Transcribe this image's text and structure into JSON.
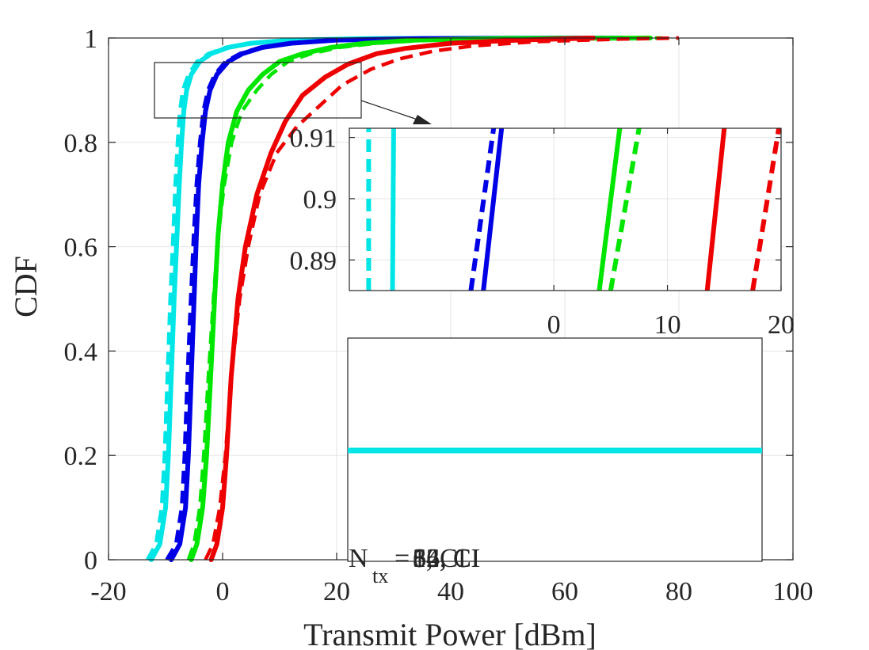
{
  "chart_data": {
    "type": "line",
    "title": "",
    "xlabel": "Transmit Power [dBm]",
    "ylabel": "CDF",
    "xlim": [
      -20,
      100
    ],
    "ylim": [
      0,
      1
    ],
    "xticks": [
      "-20",
      "0",
      "20",
      "40",
      "60",
      "80",
      "100"
    ],
    "yticks": [
      "0",
      "0.2",
      "0.4",
      "0.6",
      "0.8",
      "1"
    ],
    "grid": true,
    "colors": {
      "cyan": "#00e5e5",
      "blue": "#0000e6",
      "green": "#00e600",
      "red": "#ee0000"
    },
    "series": [
      {
        "name": "cyan-solid",
        "color": "cyan",
        "style": "solid",
        "points": [
          [
            -12.5,
            0
          ],
          [
            -11,
            0.03
          ],
          [
            -10,
            0.1
          ],
          [
            -9.5,
            0.2
          ],
          [
            -9,
            0.35
          ],
          [
            -8.5,
            0.5
          ],
          [
            -8,
            0.62
          ],
          [
            -7.6,
            0.72
          ],
          [
            -7.2,
            0.8
          ],
          [
            -6.8,
            0.86
          ],
          [
            -6.3,
            0.9
          ],
          [
            -5.5,
            0.93
          ],
          [
            -4,
            0.955
          ],
          [
            -2,
            0.97
          ],
          [
            1,
            0.982
          ],
          [
            5,
            0.99
          ],
          [
            12,
            0.996
          ],
          [
            25,
            0.999
          ],
          [
            60,
            1
          ]
        ]
      },
      {
        "name": "cyan-dashed",
        "color": "cyan",
        "style": "dashed",
        "points": [
          [
            -13.2,
            0
          ],
          [
            -11.7,
            0.03
          ],
          [
            -10.7,
            0.1
          ],
          [
            -10.2,
            0.2
          ],
          [
            -9.7,
            0.35
          ],
          [
            -9.2,
            0.5
          ],
          [
            -8.7,
            0.62
          ],
          [
            -8.3,
            0.72
          ],
          [
            -7.9,
            0.8
          ],
          [
            -7.5,
            0.86
          ],
          [
            -7,
            0.9
          ],
          [
            -6,
            0.93
          ],
          [
            -4.5,
            0.955
          ],
          [
            -2.5,
            0.97
          ],
          [
            0.5,
            0.982
          ],
          [
            4.5,
            0.99
          ],
          [
            11,
            0.996
          ],
          [
            24,
            0.999
          ],
          [
            58,
            1
          ]
        ]
      },
      {
        "name": "blue-solid",
        "color": "blue",
        "style": "solid",
        "points": [
          [
            -9,
            0
          ],
          [
            -7.5,
            0.03
          ],
          [
            -6.5,
            0.1
          ],
          [
            -6,
            0.2
          ],
          [
            -5.5,
            0.35
          ],
          [
            -5,
            0.5
          ],
          [
            -4.6,
            0.62
          ],
          [
            -4.2,
            0.72
          ],
          [
            -3.6,
            0.8
          ],
          [
            -3,
            0.86
          ],
          [
            -2.2,
            0.9
          ],
          [
            -1,
            0.93
          ],
          [
            1,
            0.955
          ],
          [
            3.5,
            0.97
          ],
          [
            7,
            0.982
          ],
          [
            12,
            0.99
          ],
          [
            20,
            0.996
          ],
          [
            35,
            0.999
          ],
          [
            70,
            1
          ]
        ]
      },
      {
        "name": "blue-dashed",
        "color": "blue",
        "style": "dashed",
        "points": [
          [
            -9.8,
            0
          ],
          [
            -8.2,
            0.03
          ],
          [
            -7.2,
            0.1
          ],
          [
            -6.7,
            0.2
          ],
          [
            -6.2,
            0.35
          ],
          [
            -5.6,
            0.5
          ],
          [
            -5.1,
            0.62
          ],
          [
            -4.6,
            0.72
          ],
          [
            -4,
            0.8
          ],
          [
            -3.4,
            0.86
          ],
          [
            -2.6,
            0.9
          ],
          [
            -1.4,
            0.93
          ],
          [
            0.5,
            0.955
          ],
          [
            3,
            0.97
          ],
          [
            6.5,
            0.982
          ],
          [
            11.5,
            0.99
          ],
          [
            19,
            0.996
          ],
          [
            34,
            0.999
          ],
          [
            68,
            1
          ]
        ]
      },
      {
        "name": "green-solid",
        "color": "green",
        "style": "solid",
        "points": [
          [
            -5.5,
            0
          ],
          [
            -4.5,
            0.03
          ],
          [
            -3.5,
            0.1
          ],
          [
            -2.8,
            0.2
          ],
          [
            -2.1,
            0.35
          ],
          [
            -1.4,
            0.5
          ],
          [
            -0.8,
            0.62
          ],
          [
            0,
            0.72
          ],
          [
            1,
            0.8
          ],
          [
            2.5,
            0.86
          ],
          [
            4.5,
            0.9
          ],
          [
            7,
            0.93
          ],
          [
            10,
            0.955
          ],
          [
            14,
            0.97
          ],
          [
            19,
            0.982
          ],
          [
            25,
            0.99
          ],
          [
            34,
            0.996
          ],
          [
            48,
            0.999
          ],
          [
            75,
            1
          ]
        ]
      },
      {
        "name": "green-dashed",
        "color": "green",
        "style": "dashed",
        "points": [
          [
            -6,
            0
          ],
          [
            -5,
            0.03
          ],
          [
            -4,
            0.1
          ],
          [
            -3.3,
            0.2
          ],
          [
            -2.5,
            0.35
          ],
          [
            -1.6,
            0.5
          ],
          [
            -0.8,
            0.62
          ],
          [
            0.3,
            0.72
          ],
          [
            1.6,
            0.8
          ],
          [
            3.4,
            0.86
          ],
          [
            6,
            0.9
          ],
          [
            8.5,
            0.93
          ],
          [
            11.5,
            0.955
          ],
          [
            15.5,
            0.97
          ],
          [
            20.5,
            0.982
          ],
          [
            27,
            0.99
          ],
          [
            36,
            0.996
          ],
          [
            50,
            0.999
          ],
          [
            77,
            1
          ]
        ]
      },
      {
        "name": "red-solid",
        "color": "red",
        "style": "solid",
        "points": [
          [
            -2,
            0
          ],
          [
            -1,
            0.03
          ],
          [
            0,
            0.1
          ],
          [
            0.7,
            0.2
          ],
          [
            1.5,
            0.35
          ],
          [
            2.7,
            0.5
          ],
          [
            4,
            0.6
          ],
          [
            6,
            0.7
          ],
          [
            8.5,
            0.78
          ],
          [
            11,
            0.84
          ],
          [
            14,
            0.89
          ],
          [
            18,
            0.925
          ],
          [
            22,
            0.95
          ],
          [
            27,
            0.97
          ],
          [
            32,
            0.98
          ],
          [
            40,
            0.99
          ],
          [
            52,
            0.996
          ],
          [
            65,
            1
          ]
        ]
      },
      {
        "name": "red-dashed",
        "color": "red",
        "style": "dashed",
        "points": [
          [
            -3,
            0
          ],
          [
            -1.7,
            0.03
          ],
          [
            -0.5,
            0.1
          ],
          [
            0.5,
            0.2
          ],
          [
            1.5,
            0.35
          ],
          [
            3,
            0.5
          ],
          [
            4.5,
            0.6
          ],
          [
            6.5,
            0.7
          ],
          [
            9.5,
            0.78
          ],
          [
            13,
            0.83
          ],
          [
            17,
            0.87
          ],
          [
            21,
            0.91
          ],
          [
            26,
            0.94
          ],
          [
            31,
            0.96
          ],
          [
            37,
            0.975
          ],
          [
            44,
            0.985
          ],
          [
            55,
            0.993
          ],
          [
            70,
            0.998
          ],
          [
            80,
            1
          ]
        ]
      }
    ],
    "inset": {
      "xlim": [
        -18,
        20
      ],
      "ylim": [
        0.885,
        0.9115
      ],
      "xticks": [
        "0",
        "10",
        "20"
      ],
      "yticks": [
        "0.89",
        "0.9",
        "0.91"
      ],
      "lines": [
        {
          "color": "cyan",
          "style": "dashed",
          "x": [
            -16.3,
            -16.3
          ]
        },
        {
          "color": "cyan",
          "style": "solid",
          "x": [
            -14.2,
            -14.1
          ]
        },
        {
          "color": "blue",
          "style": "dashed",
          "x": [
            -7.3,
            -5.3
          ]
        },
        {
          "color": "blue",
          "style": "solid",
          "x": [
            -6.2,
            -4.6
          ]
        },
        {
          "color": "green",
          "style": "solid",
          "x": [
            4,
            5.8
          ]
        },
        {
          "color": "green",
          "style": "dashed",
          "x": [
            5,
            7.5
          ]
        },
        {
          "color": "red",
          "style": "solid",
          "x": [
            13.5,
            15
          ]
        },
        {
          "color": "red",
          "style": "dashed",
          "x": [
            17.5,
            19.8
          ]
        }
      ]
    },
    "legend": {
      "location": "lower-right",
      "overlapping_labels": [
        "N",
        "tx",
        "=",
        "64, CI",
        "32, CI",
        "16, CI",
        "8, CI"
      ],
      "sample_color": "cyan"
    }
  }
}
